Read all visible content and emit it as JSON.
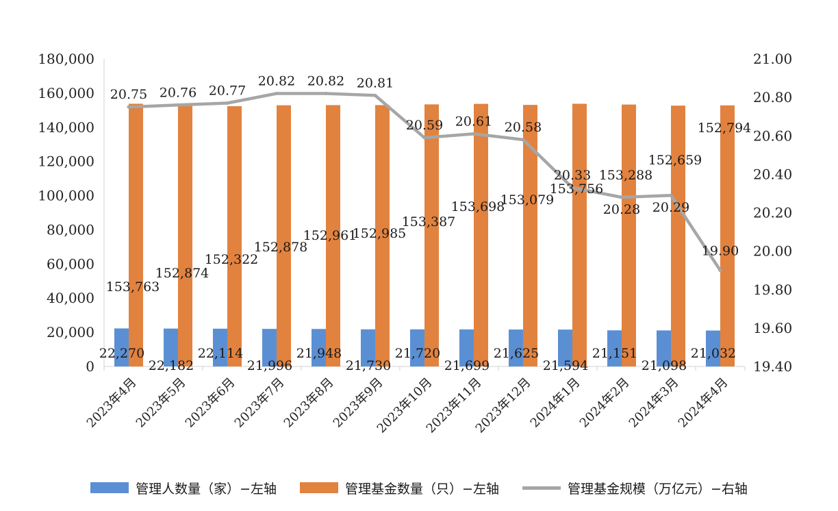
{
  "chart_data": {
    "type": "bar",
    "categories": [
      "2023年4月",
      "2023年5月",
      "2023年6月",
      "2023年7月",
      "2023年8月",
      "2023年9月",
      "2023年10月",
      "2023年11月",
      "2023年12月",
      "2024年1月",
      "2024年2月",
      "2024年3月",
      "2024年4月"
    ],
    "series": [
      {
        "name": "管理人数量（家）−左轴",
        "type": "bar",
        "axis": "left",
        "color": "#5B8FD4",
        "values": [
          22270,
          22182,
          22114,
          21996,
          21948,
          21730,
          21720,
          21699,
          21625,
          21594,
          21151,
          21098,
          21032
        ],
        "labels": [
          "22,270",
          "22,182",
          "22,114",
          "21,996",
          "21,948",
          "21,730",
          "21,720",
          "21,699",
          "21,625",
          "21,594",
          "21,151",
          "21,098",
          "21,032"
        ]
      },
      {
        "name": "管理基金数量（只）−左轴",
        "type": "bar",
        "axis": "left",
        "color": "#E2823F",
        "values": [
          153763,
          152874,
          152322,
          152878,
          152961,
          152985,
          153387,
          153698,
          153079,
          153756,
          153288,
          152659,
          152794
        ],
        "labels": [
          "153,763",
          "152,874",
          "152,322",
          "152,878",
          "152,961",
          "152,985",
          "153,387",
          "153,698",
          "153,079",
          "153,756",
          "153,288",
          "152,659",
          "152,794"
        ]
      },
      {
        "name": "管理基金规模（万亿元）−右轴",
        "type": "line",
        "axis": "right",
        "color": "#A6A6A6",
        "values": [
          20.75,
          20.76,
          20.77,
          20.82,
          20.82,
          20.81,
          20.59,
          20.61,
          20.58,
          20.33,
          20.28,
          20.29,
          19.9
        ],
        "labels": [
          "20.75",
          "20.76",
          "20.77",
          "20.82",
          "20.82",
          "20.81",
          "20.59",
          "20.61",
          "20.58",
          "20.33",
          "20.28",
          "20.29",
          "19.90"
        ]
      }
    ],
    "y_left": {
      "range": [
        0,
        180000
      ],
      "ticks": [
        "0",
        "20,000",
        "40,000",
        "60,000",
        "80,000",
        "100,000",
        "120,000",
        "140,000",
        "160,000",
        "180,000"
      ]
    },
    "y_right": {
      "range": [
        19.4,
        21.0
      ],
      "ticks": [
        "19.40",
        "19.60",
        "19.80",
        "20.00",
        "20.20",
        "20.40",
        "20.60",
        "20.80",
        "21.00"
      ]
    },
    "grid": false,
    "legend_position": "bottom"
  }
}
